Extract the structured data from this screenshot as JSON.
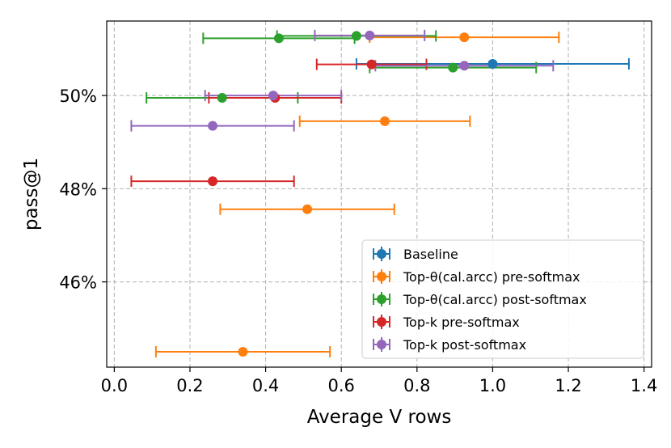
{
  "chart_data": {
    "type": "scatter",
    "title": "",
    "xlabel": "Average V rows",
    "ylabel": "pass@1",
    "xlim": [
      -0.02,
      1.42
    ],
    "ylim": [
      44.17,
      51.6
    ],
    "xticks": [
      0.0,
      0.2,
      0.4,
      0.6,
      0.8,
      1.0,
      1.2,
      1.4
    ],
    "xtick_labels": [
      "0.0",
      "0.2",
      "0.4",
      "0.6",
      "0.8",
      "1.0",
      "1.2",
      "1.4"
    ],
    "yticks": [
      46,
      48,
      50
    ],
    "ytick_labels": [
      "46%",
      "48%",
      "50%"
    ],
    "grid": true,
    "legend_position": "lower-right",
    "series": [
      {
        "name": "Baseline",
        "color": "#1f77b4",
        "points": [
          {
            "x": 1.0,
            "y": 50.68,
            "xerr": 0.36
          }
        ]
      },
      {
        "name": "Top-θ(cal.arcc) pre-softmax",
        "color": "#ff7f0e",
        "points": [
          {
            "x": 0.925,
            "y": 51.25,
            "xerr": 0.25
          },
          {
            "x": 0.715,
            "y": 49.45,
            "xerr": 0.225
          },
          {
            "x": 0.51,
            "y": 47.56,
            "xerr": 0.23
          },
          {
            "x": 0.34,
            "y": 44.5,
            "xerr": 0.23
          }
        ]
      },
      {
        "name": "Top-θ(cal.arcc) post-softmax",
        "color": "#2ca02c",
        "points": [
          {
            "x": 0.64,
            "y": 51.28,
            "xerr": 0.21
          },
          {
            "x": 0.435,
            "y": 51.23,
            "xerr": 0.2
          },
          {
            "x": 0.895,
            "y": 50.6,
            "xerr": 0.22
          },
          {
            "x": 0.285,
            "y": 49.95,
            "xerr": 0.2
          }
        ]
      },
      {
        "name": "Top-k pre-softmax",
        "color": "#d62728",
        "points": [
          {
            "x": 0.68,
            "y": 50.67,
            "xerr": 0.145
          },
          {
            "x": 0.425,
            "y": 49.95,
            "xerr": 0.175
          },
          {
            "x": 0.26,
            "y": 48.16,
            "xerr": 0.215
          }
        ]
      },
      {
        "name": "Top-k post-softmax",
        "color": "#9467bd",
        "points": [
          {
            "x": 0.675,
            "y": 51.29,
            "xerr": 0.145
          },
          {
            "x": 0.925,
            "y": 50.64,
            "xerr": 0.235
          },
          {
            "x": 0.42,
            "y": 50.0,
            "xerr": 0.18
          },
          {
            "x": 0.26,
            "y": 49.35,
            "xerr": 0.215
          }
        ]
      }
    ]
  }
}
